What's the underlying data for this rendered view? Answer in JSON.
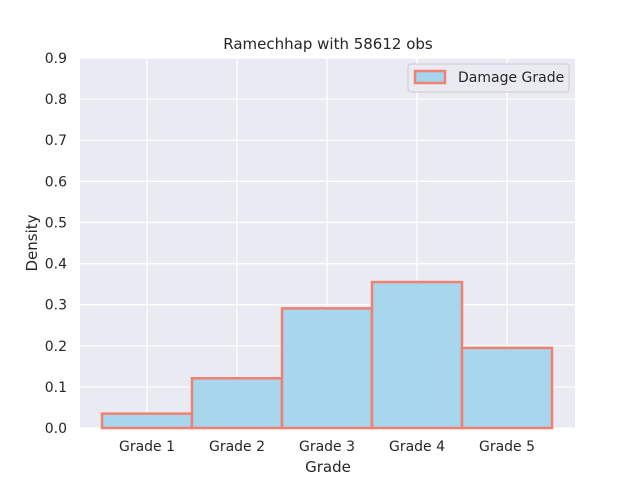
{
  "chart_data": {
    "type": "bar",
    "title": "Ramechhap with 58612 obs",
    "xlabel": "Grade",
    "ylabel": "Density",
    "categories": [
      "Grade 1",
      "Grade 2",
      "Grade 3",
      "Grade 4",
      "Grade 5"
    ],
    "series": [
      {
        "name": "Damage Grade",
        "values": [
          0.035,
          0.121,
          0.291,
          0.355,
          0.195
        ]
      }
    ],
    "ylim": [
      0,
      0.9
    ],
    "yticks": [
      "0.0",
      "0.1",
      "0.2",
      "0.3",
      "0.4",
      "0.5",
      "0.6",
      "0.7",
      "0.8",
      "0.9"
    ],
    "grid": true,
    "legend_position": "top-right",
    "colors": {
      "background": "#eaeaf2",
      "grid": "#ffffff",
      "bar_fill": "#a3d5ec",
      "bar_edge": "#f08070"
    }
  }
}
